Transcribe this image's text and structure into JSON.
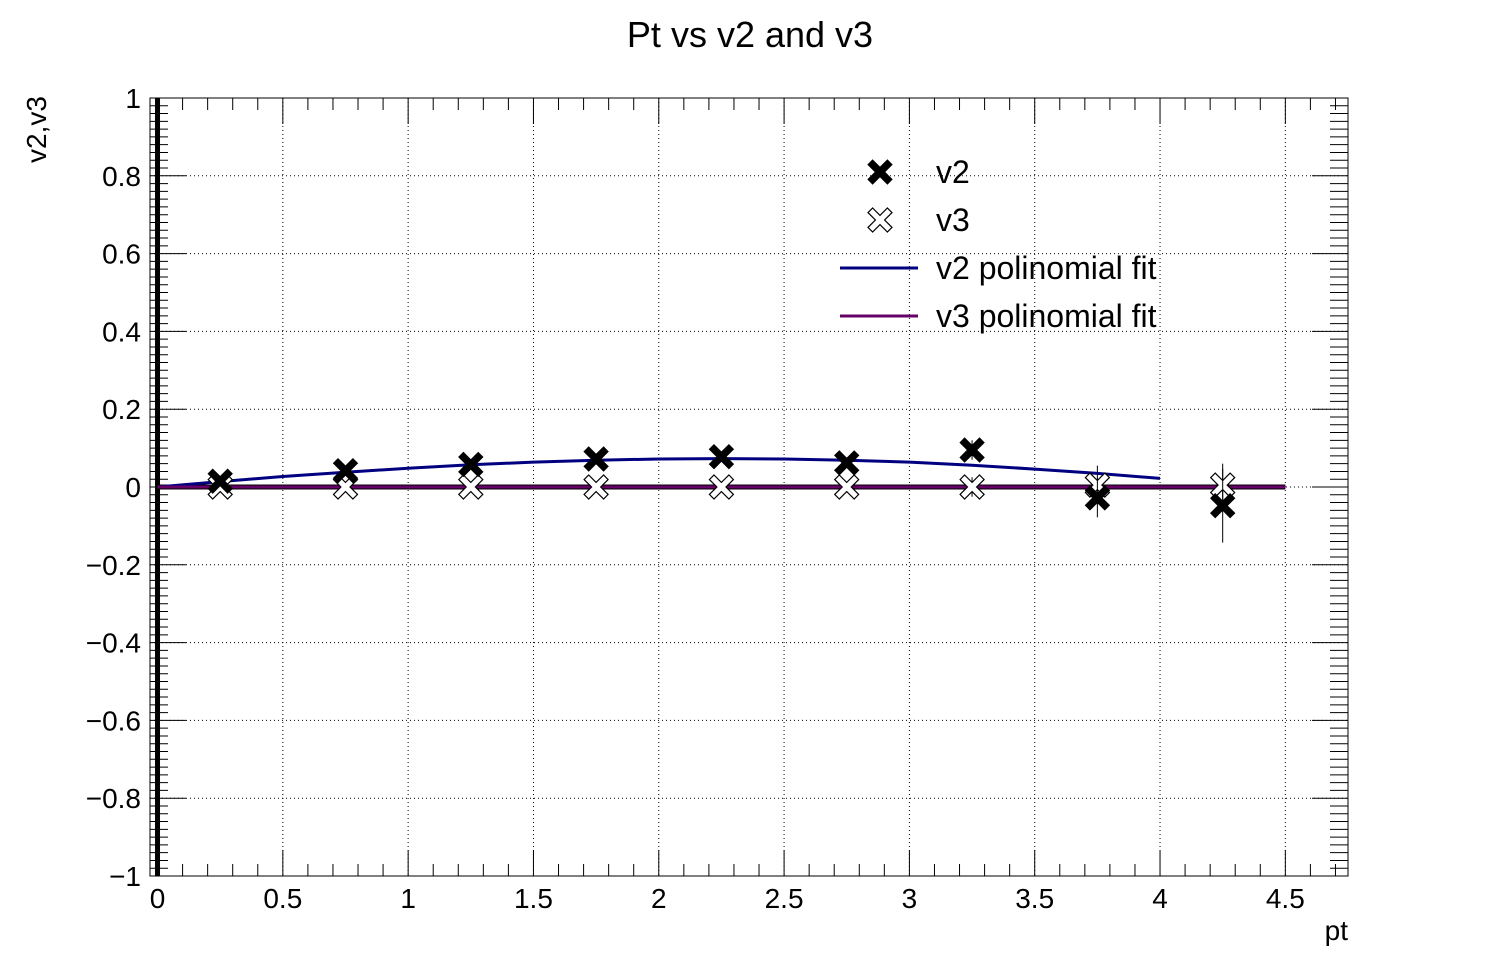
{
  "chart_data": {
    "type": "scatter",
    "title": "Pt vs v2 and v3",
    "xlabel": "pt",
    "ylabel": "v2,v3",
    "xlim": [
      -0.03,
      4.75
    ],
    "ylim": [
      -1,
      1
    ],
    "grid": true,
    "legend_position": "top-right",
    "x_ticks": [
      0,
      0.5,
      1,
      1.5,
      2,
      2.5,
      3,
      3.5,
      4,
      4.5
    ],
    "x_tick_labels": [
      "0",
      "0.5",
      "1",
      "1.5",
      "2",
      "2.5",
      "3",
      "3.5",
      "4",
      "4.5"
    ],
    "y_ticks": [
      -1,
      -0.8,
      -0.6,
      -0.4,
      -0.2,
      0,
      0.2,
      0.4,
      0.6,
      0.8,
      1
    ],
    "y_tick_labels": [
      "−1",
      "−0.8",
      "−0.6",
      "−0.4",
      "−0.2",
      "0",
      "0.2",
      "0.4",
      "0.6",
      "0.8",
      "1"
    ],
    "series": [
      {
        "name": "v2",
        "marker": "filled-x",
        "color": "#000000",
        "x": [
          0.25,
          0.75,
          1.25,
          1.75,
          2.25,
          2.75,
          3.25,
          3.75,
          4.25
        ],
        "y": [
          0.015,
          0.042,
          0.058,
          0.072,
          0.078,
          0.062,
          0.095,
          -0.028,
          -0.048
        ],
        "y_err": [
          0.004,
          0.005,
          0.006,
          0.008,
          0.01,
          0.013,
          0.025,
          0.05,
          0.095
        ]
      },
      {
        "name": "v3",
        "marker": "open-x",
        "color": "#000000",
        "x": [
          0.25,
          0.75,
          1.25,
          1.75,
          2.25,
          2.75,
          3.25,
          3.75,
          4.25
        ],
        "y": [
          0.0,
          0.0,
          0.0,
          0.0,
          0.0,
          0.0,
          0.0,
          0.005,
          0.005
        ],
        "y_err": [
          0.004,
          0.005,
          0.006,
          0.008,
          0.01,
          0.013,
          0.025,
          0.05,
          0.055
        ]
      },
      {
        "name": "v2 polinomial fit",
        "type": "line",
        "color": "#000080",
        "x": [
          0.0,
          0.25,
          0.5,
          0.75,
          1.0,
          1.25,
          1.5,
          1.75,
          2.0,
          2.25,
          2.5,
          2.75,
          3.0,
          3.25,
          3.5,
          3.75,
          4.0
        ],
        "y": [
          0.0,
          0.014,
          0.027,
          0.038,
          0.048,
          0.057,
          0.064,
          0.069,
          0.072,
          0.073,
          0.072,
          0.069,
          0.064,
          0.056,
          0.046,
          0.035,
          0.022
        ]
      },
      {
        "name": "v3 polinomial fit",
        "type": "line",
        "color": "#660066",
        "x": [
          0.0,
          4.5
        ],
        "y": [
          0.0,
          0.0
        ]
      }
    ]
  }
}
